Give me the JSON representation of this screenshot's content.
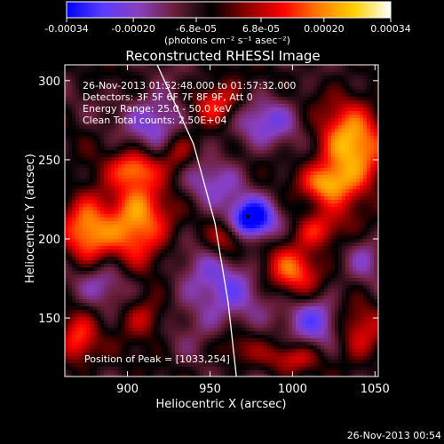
{
  "window": {
    "timestamp": "26-Nov-2013 00:54"
  },
  "colorbar": {
    "tick_labels": [
      "-0.00034",
      "-0.00020",
      "-6.8e-05",
      "6.8e-05",
      "0.00020",
      "0.00034"
    ],
    "tick_values": [
      -0.00034,
      -0.0002,
      -6.8e-05,
      6.8e-05,
      0.0002,
      0.00034
    ],
    "unit_label": "(photons cm⁻² s⁻¹ asec⁻²)",
    "range": [
      -0.00034,
      0.00034
    ],
    "palette": [
      "#0000ff",
      "#5a3cff",
      "#8a3fbf",
      "#6b1f3a",
      "#000000",
      "#8b0000",
      "#ff0000",
      "#ff7a00",
      "#ffd200",
      "#ffffff"
    ]
  },
  "chart_data": {
    "type": "heatmap",
    "title": "Reconstructed RHESSI Image",
    "xlabel": "Heliocentric X (arcsec)",
    "ylabel": "Heliocentric Y (arcsec)",
    "xlim": [
      862,
      1052
    ],
    "ylim": [
      113,
      310
    ],
    "x_ticks": [
      900,
      950,
      1000,
      1050
    ],
    "y_ticks": [
      150,
      200,
      250,
      300
    ],
    "info_lines": [
      "26-Nov-2013 01:52:48.000 to 01:57:32.000",
      "Detectors: 3F 5F 6F 7F 8F 9F, Att 0",
      "Energy Range: 25.0 - 50.0 keV",
      "Clean      Total counts: 2.50E+04"
    ],
    "peak_label": "Position of Peak = [1033,254]",
    "peak": {
      "x": 1033,
      "y": 254
    },
    "blobs": [
      {
        "x": 1035,
        "y": 255,
        "sx": 14,
        "sy": 22,
        "amp": 0.92
      },
      {
        "x": 1020,
        "y": 235,
        "sx": 10,
        "sy": 8,
        "amp": 0.55
      },
      {
        "x": 905,
        "y": 210,
        "sx": 14,
        "sy": 18,
        "amp": 0.9
      },
      {
        "x": 875,
        "y": 205,
        "sx": 10,
        "sy": 18,
        "amp": 0.7
      },
      {
        "x": 905,
        "y": 245,
        "sx": 10,
        "sy": 8,
        "amp": 0.6
      },
      {
        "x": 955,
        "y": 285,
        "sx": 12,
        "sy": 10,
        "amp": 0.7
      },
      {
        "x": 930,
        "y": 255,
        "sx": 8,
        "sy": 10,
        "amp": 0.5
      },
      {
        "x": 1000,
        "y": 180,
        "sx": 12,
        "sy": 12,
        "amp": 0.65
      },
      {
        "x": 960,
        "y": 200,
        "sx": 8,
        "sy": 8,
        "amp": 0.45
      },
      {
        "x": 1015,
        "y": 205,
        "sx": 10,
        "sy": 8,
        "amp": 0.5
      },
      {
        "x": 870,
        "y": 135,
        "sx": 8,
        "sy": 12,
        "amp": 0.55
      },
      {
        "x": 910,
        "y": 150,
        "sx": 10,
        "sy": 10,
        "amp": 0.45
      },
      {
        "x": 1040,
        "y": 140,
        "sx": 10,
        "sy": 14,
        "amp": 0.45
      },
      {
        "x": 1000,
        "y": 125,
        "sx": 12,
        "sy": 6,
        "amp": 0.4
      },
      {
        "x": 965,
        "y": 130,
        "sx": 10,
        "sy": 8,
        "amp": 0.35
      },
      {
        "x": 975,
        "y": 212,
        "sx": 10,
        "sy": 9,
        "amp": -0.95
      },
      {
        "x": 920,
        "y": 275,
        "sx": 14,
        "sy": 14,
        "amp": -0.5
      },
      {
        "x": 980,
        "y": 275,
        "sx": 18,
        "sy": 12,
        "amp": -0.45
      },
      {
        "x": 950,
        "y": 235,
        "sx": 14,
        "sy": 12,
        "amp": -0.35
      },
      {
        "x": 955,
        "y": 165,
        "sx": 20,
        "sy": 20,
        "amp": -0.45
      },
      {
        "x": 1015,
        "y": 150,
        "sx": 12,
        "sy": 12,
        "amp": -0.5
      },
      {
        "x": 885,
        "y": 175,
        "sx": 14,
        "sy": 12,
        "amp": -0.4
      },
      {
        "x": 1045,
        "y": 190,
        "sx": 8,
        "sy": 12,
        "amp": -0.3
      }
    ],
    "limb": [
      {
        "x": 918,
        "y": 310
      },
      {
        "x": 940,
        "y": 260
      },
      {
        "x": 953,
        "y": 210
      },
      {
        "x": 961,
        "y": 160
      },
      {
        "x": 966,
        "y": 113
      }
    ]
  }
}
